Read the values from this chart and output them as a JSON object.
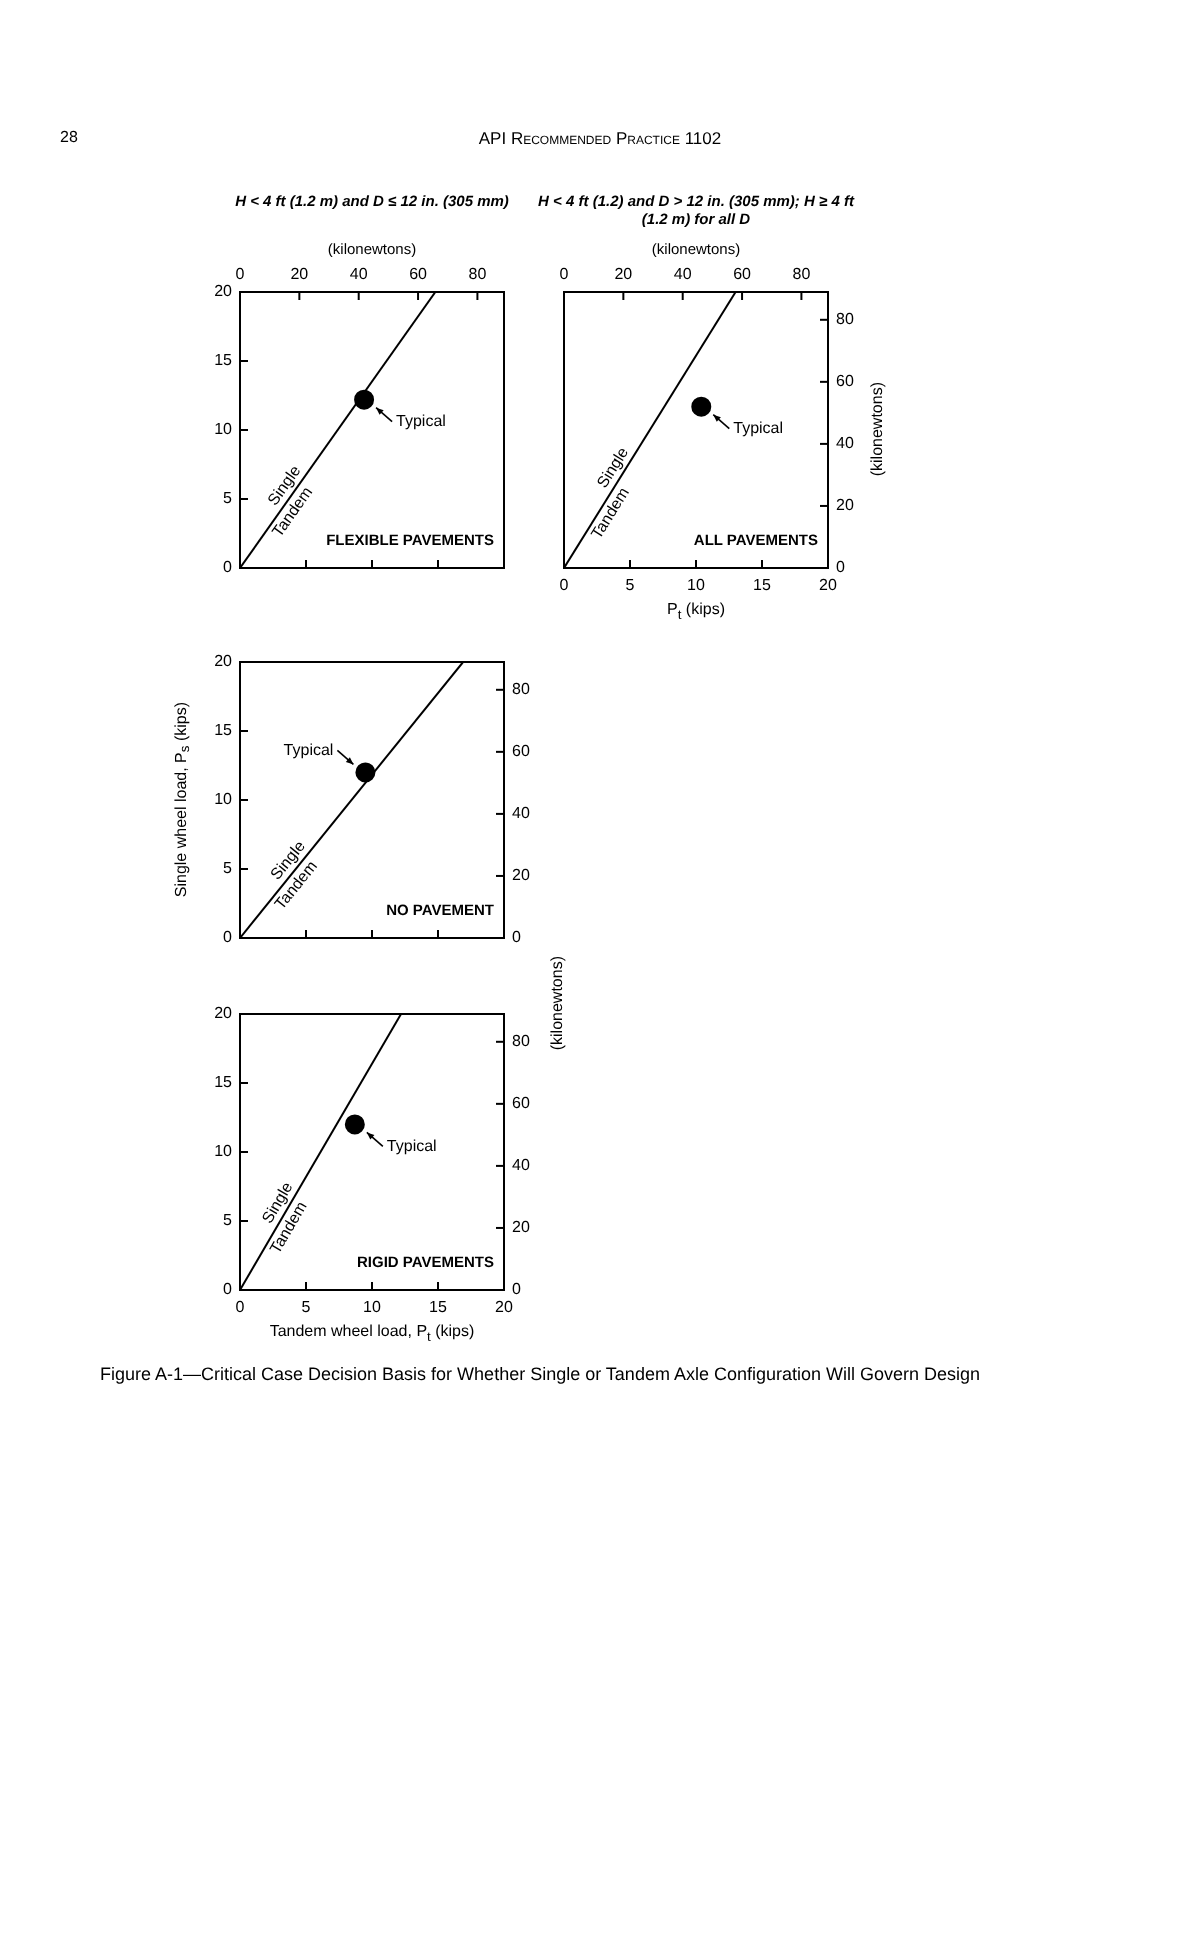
{
  "chart_data": [
    {
      "type": "line",
      "title": "H < 4 ft (1.2 m) and D ≤ 12 in. (305 mm)",
      "subtitle": "FLEXIBLE PAVEMENTS",
      "x2label": "(kilonewtons)",
      "xlim": [
        0,
        20
      ],
      "ylim": [
        0,
        20
      ],
      "x2lim": [
        0,
        88.96
      ],
      "tick_labels": "y",
      "xticks": [
        0,
        5,
        10,
        15,
        20
      ],
      "yticks": [
        0,
        5,
        10,
        15,
        20
      ],
      "x2ticks": [
        0,
        20,
        40,
        60,
        80
      ],
      "series": [
        {
          "type": "line",
          "color": "#000000",
          "marker": "none",
          "x": [
            0,
            14.8
          ],
          "values": [
            0,
            20
          ]
        },
        {
          "type": "scatter",
          "color": "#000000",
          "marker": "circle",
          "x": [
            9.4
          ],
          "values": [
            12.2
          ]
        }
      ],
      "annotations": [
        "28",
        "API Recommended Practice 1102",
        {
          "text": "Typical",
          "x": 9.4,
          "y": 12.2
        },
        {
          "text": "Single",
          "x": 4.07,
          "y": 5.5
        },
        {
          "text": "Tandem",
          "x": 3.33,
          "y": 4.5
        }
      ]
    },
    {
      "type": "line",
      "title": "H < 4 ft (1.2) and D > 12 in. (305 mm); H ≥ 4 ft (1.2 m) for all D",
      "subtitle": "ALL PAVEMENTS",
      "x2label": "(kilonewtons)",
      "xlabel": "P$_{t}$ (kips)",
      "y2label": "(kilonewtons)",
      "xlim": [
        0,
        20
      ],
      "x2lim": [
        0,
        88.96
      ],
      "y2lim": [
        0,
        88.96
      ],
      "xticks": [
        0,
        5,
        10,
        15,
        20
      ],
      "x2ticks": [
        0,
        20,
        40,
        60,
        80
      ],
      "y2ticks": [
        0,
        20,
        40,
        60,
        80
      ],
      "series": [
        {
          "type": "line",
          "color": "#000000",
          "marker": "none",
          "axis": "y2",
          "x": [
            0,
            13.0
          ],
          "values": [
            0,
            88.96
          ]
        },
        {
          "type": "scatter",
          "color": "#000000",
          "marker": "circle",
          "axis": "y2",
          "x": [
            10.4
          ],
          "values": [
            52
          ]
        }
      ],
      "annotations": [
        "Typical",
        "Single",
        "Tandem"
      ]
    },
    {
      "type": "line",
      "subtitle": "NO PAVEMENT",
      "ylabel": "Single wheel load, P$_{s}$ (kips)",
      "y2label": "(kilonewtons)",
      "xlim": [
        0,
        20
      ],
      "ylim": [
        0,
        20
      ],
      "y2lim": [
        0,
        88.96
      ],
      "tick_labels": "y",
      "xticks": [
        0,
        5,
        10,
        15,
        20
      ],
      "yticks": [
        0,
        5,
        10,
        15,
        20
      ],
      "y2ticks": [
        0,
        20,
        40,
        60,
        80
      ],
      "series": [
        {
          "type": "line",
          "color": "#000000",
          "marker": "none",
          "x": [
            0,
            16.9
          ],
          "values": [
            0,
            20
          ]
        },
        {
          "type": "scatter",
          "color": "#000000",
          "marker": "circle",
          "x": [
            9.5
          ],
          "values": [
            12.0
          ]
        }
      ],
      "annotations": [
        {
          "text": "Typical",
          "x": 9.5,
          "y": 12.0
        },
        {
          "text": "Single",
          "x": 4.31,
          "y": 5.1
        },
        {
          "text": "Tandem",
          "x": 3.63,
          "y": 4.3
        }
      ]
    },
    {
      "type": "line",
      "subtitle": "RIGID PAVEMENTS",
      "xlabel": "Tandem wheel load, P$_{t}$ (kips)",
      "xlim": [
        0,
        20
      ],
      "ylim": [
        0,
        20
      ],
      "y2lim": [
        0,
        88.96
      ],
      "xticks": [
        0,
        5,
        10,
        15,
        20
      ],
      "yticks": [
        0,
        5,
        10,
        15,
        20
      ],
      "y2ticks": [
        0,
        20,
        40,
        60,
        80
      ],
      "series": [
        {
          "type": "line",
          "color": "#000000",
          "marker": "none",
          "x": [
            0,
            12.2
          ],
          "values": [
            0,
            20
          ]
        },
        {
          "type": "scatter",
          "color": "#000000",
          "marker": "circle",
          "x": [
            8.7
          ],
          "values": [
            12.0
          ]
        }
      ],
      "annotations": [
        {
          "text": "Typical",
          "x": 8.7,
          "y": 12.0
        },
        {
          "text": "Single",
          "x": 3.6,
          "y": 5.9
        },
        {
          "text": "Tandem",
          "x": 2.99,
          "y": 4.9
        },
        "Figure A-1—Critical Case Decision Basis for Whether Single or Tandem Axle Configuration Will Govern Design"
      ]
    }
  ]
}
